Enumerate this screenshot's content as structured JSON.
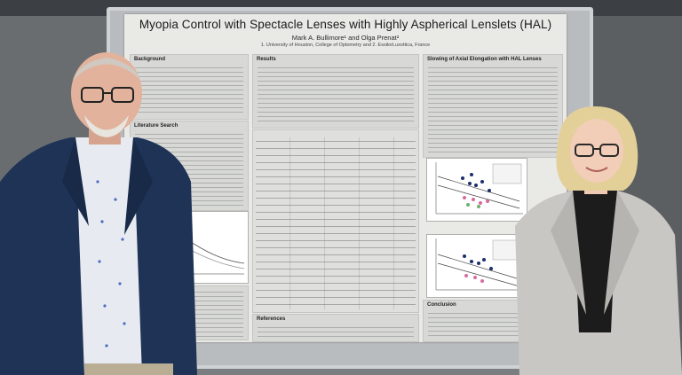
{
  "poster": {
    "title": "Myopia Control with Spectacle Lenses with Highly Aspherical Lenslets (HAL)",
    "authors": "Mark A. Bullimore¹ and Olga Prenat²",
    "affiliation": "1. University of Houston, College of Optometry and 2. EssilorLuxottica, France",
    "sections": {
      "background": "Background",
      "literature_search": "Literature Search",
      "results": "Results",
      "slowing": "Slowing of Axial Elongation with HAL Lenses",
      "references": "References",
      "conclusion": "Conclusion"
    }
  },
  "colors": {
    "poster_bg": "#e9e9e6",
    "jacket_left": "#1f3356",
    "jacket_right": "#c9c7c3",
    "board": "#b9bcbf"
  }
}
